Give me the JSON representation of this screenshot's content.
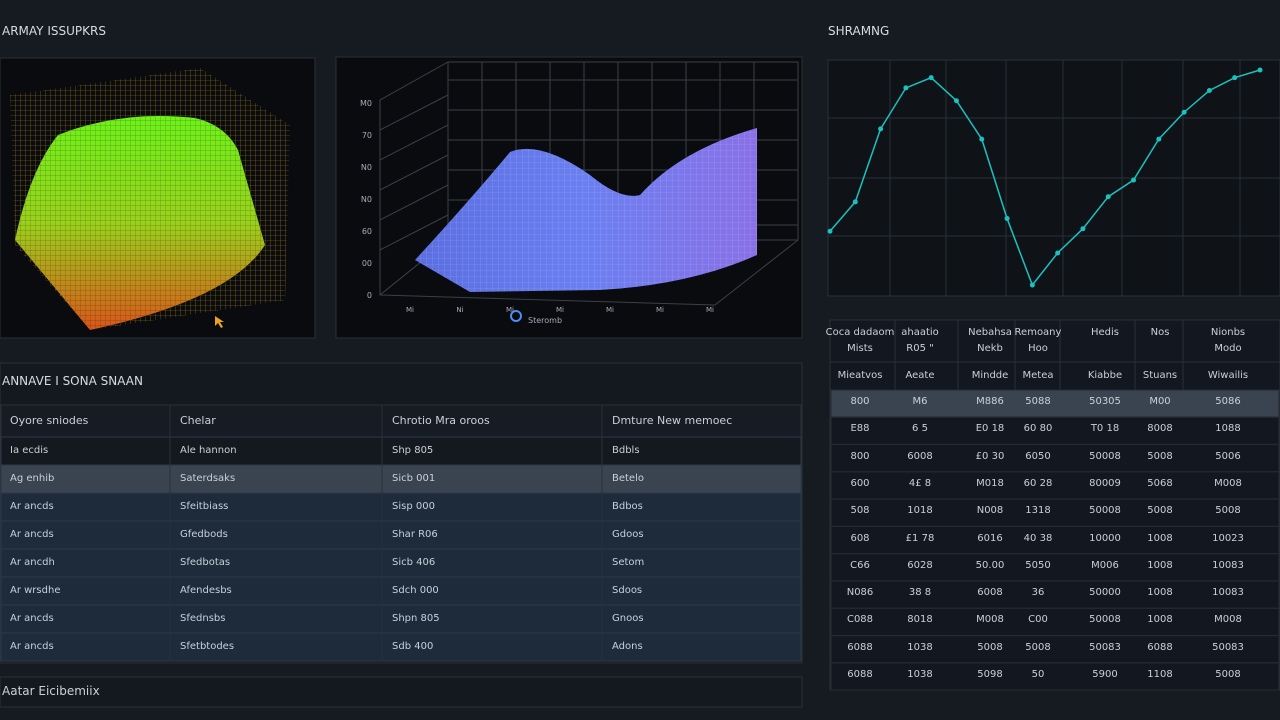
{
  "header": {
    "left_title": "ARMAY ISSUPKRS",
    "right_title": "SHRAMNG"
  },
  "surface_panel": {
    "yticks": [
      "M0",
      "70",
      "N0",
      "N0",
      "60",
      "00",
      "0"
    ],
    "xticks": [
      "Mi",
      "Ni",
      "Mi",
      "Mi",
      "Mi",
      "Mi",
      "Mi"
    ],
    "caption": "Steromb"
  },
  "line_chart": {
    "color": "#19c2c0",
    "values": [
      105,
      128,
      185,
      217,
      225,
      207,
      177,
      115,
      63,
      88,
      107,
      132,
      145,
      177,
      198,
      215,
      225,
      231
    ]
  },
  "left_table": {
    "title": "ANNAVE I SONA SNAAN",
    "headers": [
      "Oyore sniodes",
      "Chelar",
      "Chrotio Mra oroos",
      "Dmture New memoec"
    ],
    "rows": [
      [
        "Ia ecdis",
        "Ale hannon",
        "Shp 805",
        "Bdbls"
      ],
      [
        "Ag enhib",
        "Saterdsaks",
        "Sicb 001",
        "Betelo"
      ],
      [
        "Ar ancds",
        "Sfeitbiass",
        "Sisp 000",
        "Bdbos"
      ],
      [
        "Ar ancds",
        "Gfedbods",
        "Shar R06",
        "Gdoos"
      ],
      [
        "Ar ancdh",
        "Sfedbotas",
        "Sicb 406",
        "Setom"
      ],
      [
        "Ar wrsdhe",
        "Afendesbs",
        "Sdch 000",
        "Sdoos"
      ],
      [
        "Ar ancds",
        "Sfednsbs",
        "Shpn 805",
        "Gnoos"
      ],
      [
        "Ar ancds",
        "Sfetbtodes",
        "Sdb 400",
        "Adons"
      ]
    ],
    "footer": "Aatar Eicibemiix"
  },
  "right_table": {
    "headers": [
      [
        "Coca dadaom",
        "Mists"
      ],
      [
        "ahaatio",
        "R05 \""
      ],
      [
        "Nebahsa",
        "Nekb"
      ],
      [
        "Remoany",
        "Hoo"
      ],
      [
        "Hedis"
      ],
      [
        "Nos"
      ],
      [
        "Nionbs",
        "Modo"
      ]
    ],
    "subheaders": [
      "Mieatvos",
      "Aeate",
      "Mindde",
      "Metea",
      "Kiabbe",
      "Stuans",
      "Wiwailis"
    ],
    "rows": [
      [
        "800",
        "M6",
        "M886",
        "5088",
        "50305",
        "M00",
        "5086"
      ],
      [
        "E88",
        "6 5",
        "E0 18",
        "60 80",
        "T0 18",
        "8008",
        "1088"
      ],
      [
        "800",
        "6008",
        "£0 30",
        "6050",
        "50008",
        "5008",
        "5006"
      ],
      [
        "600",
        "4£ 8",
        "M018",
        "60 28",
        "80009",
        "5068",
        "M008"
      ],
      [
        "508",
        "1018",
        "N008",
        "1318",
        "50008",
        "5008",
        "5008"
      ],
      [
        "608",
        "£1 78",
        "6016",
        "40 38",
        "10000",
        "1008",
        "10023"
      ],
      [
        "C66",
        "6028",
        "50.00",
        "5050",
        "M006",
        "1008",
        "10083"
      ],
      [
        "N086",
        "38 8",
        "6008",
        "36",
        "50000",
        "1008",
        "10083"
      ],
      [
        "C088",
        "8018",
        "M008",
        "C00",
        "50008",
        "1008",
        "M008"
      ],
      [
        "6088",
        "1038",
        "5008",
        "5008",
        "50083",
        "6088",
        "50083"
      ],
      [
        "6088",
        "1038",
        "5098",
        "50",
        "5900",
        "1108",
        "5008"
      ]
    ]
  }
}
